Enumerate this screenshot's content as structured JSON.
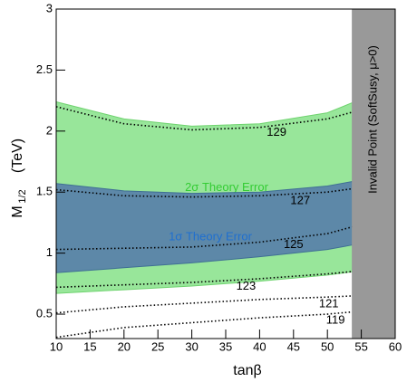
{
  "chart_data": {
    "type": "band",
    "x_label": "tanβ",
    "y_label": "M",
    "y_label_sub": "1/2",
    "y_label_unit": "(TeV)",
    "x": [
      10,
      20,
      30,
      40,
      50,
      54
    ],
    "xlim": [
      10,
      60
    ],
    "xticks": [
      10,
      15,
      20,
      25,
      30,
      35,
      40,
      45,
      50,
      55,
      60
    ],
    "ylim": [
      0.3,
      3
    ],
    "yticks": [
      0.5,
      1,
      1.5,
      2,
      2.5,
      3
    ],
    "bands": [
      {
        "name": "2σ Theory Error",
        "color": "#98e69a",
        "edge": "#6fd36f",
        "text_color": "#33cc33",
        "upper": [
          2.24,
          2.1,
          2.04,
          2.06,
          2.15,
          2.24
        ],
        "lower": [
          0.67,
          0.7,
          0.73,
          0.77,
          0.82,
          0.85
        ]
      },
      {
        "name": "1σ Theory Error",
        "color": "#5d88a8",
        "edge": "#3f6f94",
        "text_color": "#1f6fd0",
        "upper": [
          1.57,
          1.51,
          1.49,
          1.5,
          1.55,
          1.59
        ],
        "lower": [
          0.84,
          0.88,
          0.92,
          0.97,
          1.03,
          1.07
        ]
      }
    ],
    "contours": [
      {
        "name": "129",
        "values": [
          2.2,
          2.06,
          2.01,
          2.03,
          2.1,
          2.16
        ]
      },
      {
        "name": "127",
        "values": [
          1.52,
          1.47,
          1.46,
          1.47,
          1.5,
          1.53
        ]
      },
      {
        "name": "125",
        "values": [
          1.03,
          1.04,
          1.05,
          1.09,
          1.16,
          1.22
        ]
      },
      {
        "name": "123",
        "values": [
          0.72,
          0.74,
          0.76,
          0.79,
          0.83,
          0.85
        ]
      },
      {
        "name": "121",
        "values": [
          0.51,
          0.56,
          0.59,
          0.62,
          0.64,
          0.65
        ]
      },
      {
        "name": "119",
        "values": [
          0.31,
          0.39,
          0.43,
          0.47,
          0.5,
          0.52
        ]
      }
    ],
    "invalid_xmin": 53.6,
    "invalid_label": "Invalid Point (SoftSusy, μ>0)"
  }
}
